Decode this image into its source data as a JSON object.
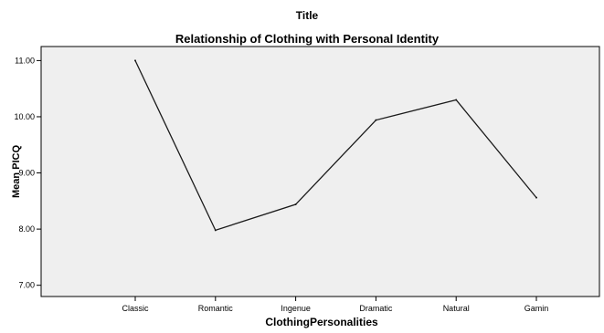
{
  "chart_data": {
    "type": "line",
    "heading": "Title",
    "title": "Relationship of Clothing with Personal Identity",
    "xlabel": "ClothingPersonalities",
    "ylabel": "Mean PICQ",
    "categories": [
      "Classic",
      "Romantic",
      "Ingenue",
      "Dramatic",
      "Natural",
      "Gamin"
    ],
    "values": [
      11.0,
      7.98,
      8.44,
      9.94,
      10.3,
      8.56
    ],
    "ylim": [
      6.8,
      11.25
    ],
    "yticks": [
      "7.00",
      "8.00",
      "9.00",
      "10.00",
      "11.00"
    ],
    "grid": false,
    "plot_background": "#efefef",
    "line_color": "#1a1a1a"
  }
}
